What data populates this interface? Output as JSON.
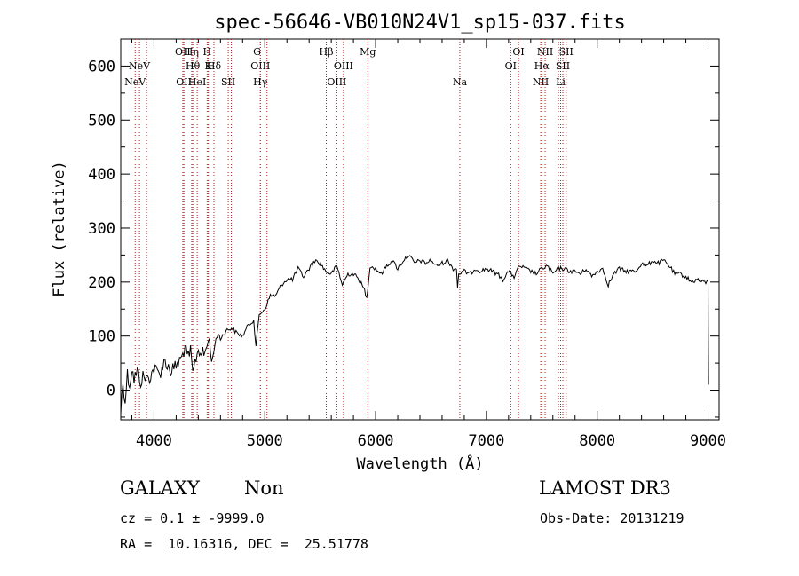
{
  "chart_data": {
    "type": "line",
    "title": "spec-56646-VB010N24V1_sp15-037.fits",
    "xlabel": "Wavelength (Å)",
    "ylabel": "Flux (relative)",
    "xlim": [
      3700,
      9100
    ],
    "ylim": [
      -55,
      650
    ],
    "xticks": [
      4000,
      5000,
      6000,
      7000,
      8000,
      9000
    ],
    "yticks": [
      0,
      100,
      200,
      300,
      400,
      500,
      600
    ],
    "series": [
      {
        "name": "flux",
        "color": "#000000",
        "x": [
          3700,
          3720,
          3740,
          3760,
          3780,
          3800,
          3820,
          3850,
          3880,
          3900,
          3950,
          4000,
          4050,
          4100,
          4150,
          4200,
          4250,
          4280,
          4300,
          4330,
          4350,
          4380,
          4400,
          4450,
          4500,
          4520,
          4550,
          4580,
          4600,
          4650,
          4700,
          4750,
          4800,
          4850,
          4900,
          4920,
          4950,
          5000,
          5050,
          5100,
          5150,
          5200,
          5250,
          5300,
          5350,
          5400,
          5450,
          5500,
          5550,
          5600,
          5650,
          5700,
          5750,
          5800,
          5850,
          5900,
          5920,
          5950,
          6000,
          6050,
          6100,
          6150,
          6200,
          6250,
          6300,
          6350,
          6400,
          6450,
          6500,
          6550,
          6600,
          6650,
          6700,
          6730,
          6740,
          6750,
          6800,
          6850,
          6900,
          6950,
          7000,
          7050,
          7100,
          7150,
          7200,
          7250,
          7300,
          7350,
          7400,
          7450,
          7500,
          7550,
          7600,
          7650,
          7700,
          7750,
          7800,
          7850,
          7900,
          7950,
          8000,
          8050,
          8100,
          8150,
          8200,
          8250,
          8300,
          8350,
          8400,
          8450,
          8500,
          8550,
          8600,
          8650,
          8700,
          8750,
          8800,
          8850,
          8900,
          8950,
          9000,
          9005
        ],
        "values": [
          -40,
          15,
          -20,
          30,
          10,
          40,
          20,
          35,
          15,
          25,
          20,
          40,
          30,
          55,
          35,
          45,
          60,
          80,
          60,
          70,
          30,
          60,
          75,
          65,
          95,
          50,
          85,
          105,
          95,
          110,
          115,
          105,
          100,
          120,
          130,
          80,
          140,
          150,
          175,
          175,
          195,
          205,
          205,
          225,
          210,
          225,
          240,
          235,
          220,
          215,
          230,
          195,
          215,
          215,
          205,
          185,
          170,
          230,
          225,
          215,
          230,
          240,
          225,
          240,
          250,
          235,
          240,
          235,
          240,
          230,
          235,
          240,
          225,
          225,
          190,
          215,
          220,
          215,
          225,
          220,
          225,
          220,
          215,
          205,
          220,
          210,
          230,
          225,
          220,
          215,
          225,
          230,
          215,
          225,
          225,
          220,
          220,
          215,
          225,
          210,
          220,
          225,
          195,
          215,
          225,
          220,
          220,
          220,
          235,
          230,
          240,
          235,
          240,
          230,
          215,
          215,
          210,
          200,
          205,
          200,
          200,
          10
        ]
      }
    ],
    "lines": [
      {
        "wavelength": 3830,
        "label": "NeV",
        "row": 3
      },
      {
        "wavelength": 3869,
        "label": "NeV",
        "row": 2
      },
      {
        "wavelength": 3933,
        "label": "",
        "row": 0
      },
      {
        "wavelength": 4260,
        "label": "OII",
        "row": 1
      },
      {
        "wavelength": 4270,
        "label": "OII",
        "row": 3
      },
      {
        "wavelength": 4340,
        "label": "Hη",
        "row": 1
      },
      {
        "wavelength": 4350,
        "label": "Hθ",
        "row": 2
      },
      {
        "wavelength": 4390,
        "label": "HeI",
        "row": 3
      },
      {
        "wavelength": 4480,
        "label": "H",
        "row": 1
      },
      {
        "wavelength": 4490,
        "label": "K",
        "row": 2
      },
      {
        "wavelength": 4541,
        "label": "Hδ",
        "row": 2
      },
      {
        "wavelength": 4670,
        "label": "SII",
        "row": 3
      },
      {
        "wavelength": 4698,
        "label": "",
        "row": 0
      },
      {
        "wavelength": 4930,
        "label": "G",
        "row": 1
      },
      {
        "wavelength": 4960,
        "label": "OIII",
        "row": 2
      },
      {
        "wavelength": 4960,
        "label": "Hγ",
        "row": 3
      },
      {
        "wavelength": 5020,
        "label": "",
        "row": 0
      },
      {
        "wavelength": 5555,
        "label": "Hβ",
        "row": 1
      },
      {
        "wavelength": 5650,
        "label": "OIII",
        "row": 3
      },
      {
        "wavelength": 5710,
        "label": "OIII",
        "row": 2
      },
      {
        "wavelength": 5930,
        "label": "Mg",
        "row": 1
      },
      {
        "wavelength": 6760,
        "label": "Na",
        "row": 3
      },
      {
        "wavelength": 7220,
        "label": "OI",
        "row": 2
      },
      {
        "wavelength": 7290,
        "label": "OI",
        "row": 1
      },
      {
        "wavelength": 7490,
        "label": "NII",
        "row": 3
      },
      {
        "wavelength": 7500,
        "label": "Hα",
        "row": 2
      },
      {
        "wavelength": 7530,
        "label": "NII",
        "row": 1
      },
      {
        "wavelength": 7650,
        "label": "",
        "row": 0
      },
      {
        "wavelength": 7670,
        "label": "Li",
        "row": 3
      },
      {
        "wavelength": 7690,
        "label": "SII",
        "row": 2
      },
      {
        "wavelength": 7720,
        "label": "SII",
        "row": 1
      }
    ]
  },
  "info": {
    "class_label": "GALAXY",
    "subclass_label": "Non",
    "survey_label": "LAMOST DR3",
    "cz_text": "cz = 0.1 ± -9999.0",
    "obs_date_text": "Obs-Date: 20131219",
    "radec_text": "RA =  10.16316, DEC =  25.51778"
  }
}
